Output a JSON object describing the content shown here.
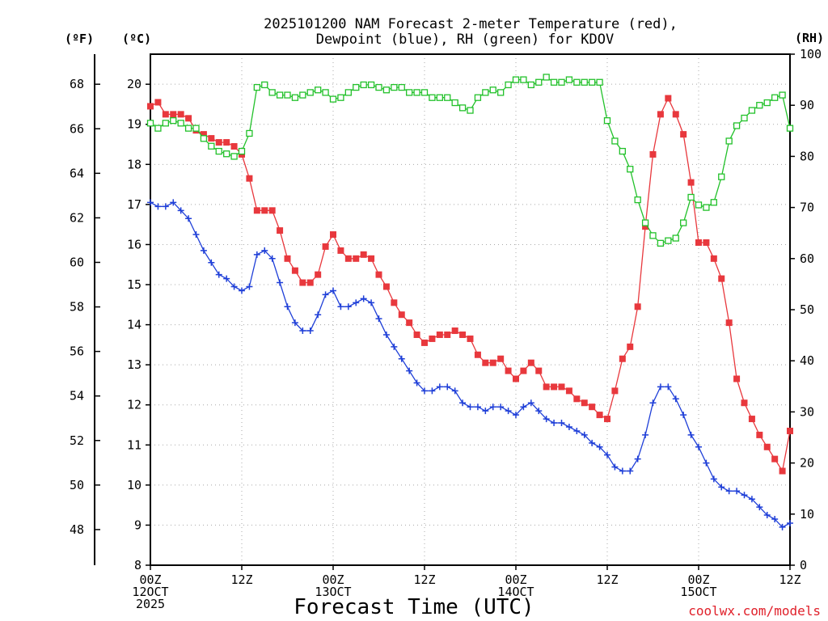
{
  "chart_data": {
    "type": "line",
    "title_lines": [
      "2025101200 NAM Forecast 2-meter Temperature (red),",
      "Dewpoint (blue), RH (green) for KDOV"
    ],
    "xlabel": "Forecast Time (UTC)",
    "credit": "coolwx.com/models",
    "unit_labels": {
      "fahrenheit": "(ºF)",
      "celsius": "(ºC)",
      "rh": "(RH)"
    },
    "x_range_hours": [
      0,
      84
    ],
    "x_ticks": [
      {
        "hour": 0,
        "lines": [
          "00Z",
          "12OCT",
          "2025"
        ]
      },
      {
        "hour": 12,
        "lines": [
          "12Z"
        ]
      },
      {
        "hour": 24,
        "lines": [
          "00Z",
          "13OCT"
        ]
      },
      {
        "hour": 36,
        "lines": [
          "12Z"
        ]
      },
      {
        "hour": 48,
        "lines": [
          "00Z",
          "14OCT"
        ]
      },
      {
        "hour": 60,
        "lines": [
          "12Z"
        ]
      },
      {
        "hour": 72,
        "lines": [
          "00Z",
          "15OCT"
        ]
      },
      {
        "hour": 84,
        "lines": [
          "12Z"
        ]
      }
    ],
    "ylim_celsius": [
      8,
      20.75
    ],
    "y_ticks_celsius": [
      "8",
      "9",
      "10",
      "11",
      "12",
      "13",
      "14",
      "15",
      "16",
      "17",
      "18",
      "19",
      "20"
    ],
    "y_ticks_fahrenheit": [
      "48",
      "50",
      "52",
      "54",
      "56",
      "58",
      "60",
      "62",
      "64",
      "66",
      "68"
    ],
    "ylim_rh": [
      0,
      100
    ],
    "y_ticks_rh": [
      "0",
      "10",
      "20",
      "30",
      "40",
      "50",
      "60",
      "70",
      "80",
      "90",
      "100"
    ],
    "grid": true,
    "series": [
      {
        "name": "Temperature",
        "units": "C",
        "color": "#e8383d",
        "marker": "filled-square",
        "x": [
          0,
          1,
          2,
          3,
          4,
          5,
          6,
          7,
          8,
          9,
          10,
          11,
          12,
          13,
          14,
          15,
          16,
          17,
          18,
          19,
          20,
          21,
          22,
          23,
          24,
          25,
          26,
          27,
          28,
          29,
          30,
          31,
          32,
          33,
          34,
          35,
          36,
          37,
          38,
          39,
          40,
          41,
          42,
          43,
          44,
          45,
          46,
          47,
          48,
          49,
          50,
          51,
          52,
          53,
          54,
          55,
          56,
          57,
          58,
          59,
          60,
          61,
          62,
          63,
          64,
          65,
          66,
          67,
          68,
          69,
          70,
          71,
          72,
          73,
          74,
          75,
          76,
          77,
          78,
          79,
          80,
          81,
          82,
          83,
          84
        ],
        "values": [
          19.45,
          19.55,
          19.25,
          19.25,
          19.25,
          19.15,
          18.85,
          18.75,
          18.65,
          18.55,
          18.55,
          18.45,
          18.25,
          17.65,
          16.85,
          16.85,
          16.85,
          16.35,
          15.65,
          15.35,
          15.05,
          15.05,
          15.25,
          15.95,
          16.25,
          15.85,
          15.65,
          15.65,
          15.75,
          15.65,
          15.25,
          14.95,
          14.55,
          14.25,
          14.05,
          13.75,
          13.55,
          13.65,
          13.75,
          13.75,
          13.85,
          13.75,
          13.65,
          13.25,
          13.05,
          13.05,
          13.15,
          12.85,
          12.65,
          12.85,
          13.05,
          12.85,
          12.45,
          12.45,
          12.45,
          12.35,
          12.15,
          12.05,
          11.95,
          11.75,
          11.65,
          12.35,
          13.15,
          13.45,
          14.45,
          16.45,
          18.25,
          19.25,
          19.65,
          19.25,
          18.75,
          17.55,
          16.05,
          16.05,
          15.65,
          15.15,
          14.05,
          12.65,
          12.05,
          11.65,
          11.25,
          10.95,
          10.65,
          10.35,
          11.35
        ]
      },
      {
        "name": "Dewpoint",
        "units": "C",
        "color": "#1f3fd8",
        "marker": "plus",
        "x": [
          0,
          1,
          2,
          3,
          4,
          5,
          6,
          7,
          8,
          9,
          10,
          11,
          12,
          13,
          14,
          15,
          16,
          17,
          18,
          19,
          20,
          21,
          22,
          23,
          24,
          25,
          26,
          27,
          28,
          29,
          30,
          31,
          32,
          33,
          34,
          35,
          36,
          37,
          38,
          39,
          40,
          41,
          42,
          43,
          44,
          45,
          46,
          47,
          48,
          49,
          50,
          51,
          52,
          53,
          54,
          55,
          56,
          57,
          58,
          59,
          60,
          61,
          62,
          63,
          64,
          65,
          66,
          67,
          68,
          69,
          70,
          71,
          72,
          73,
          74,
          75,
          76,
          77,
          78,
          79,
          80,
          81,
          82,
          83,
          84
        ],
        "values": [
          17.05,
          16.95,
          16.95,
          17.05,
          16.85,
          16.65,
          16.25,
          15.85,
          15.55,
          15.25,
          15.15,
          14.95,
          14.85,
          14.95,
          15.75,
          15.85,
          15.65,
          15.05,
          14.45,
          14.05,
          13.85,
          13.85,
          14.25,
          14.75,
          14.85,
          14.45,
          14.45,
          14.55,
          14.65,
          14.55,
          14.15,
          13.75,
          13.45,
          13.15,
          12.85,
          12.55,
          12.35,
          12.35,
          12.45,
          12.45,
          12.35,
          12.05,
          11.95,
          11.95,
          11.85,
          11.95,
          11.95,
          11.85,
          11.75,
          11.95,
          12.05,
          11.85,
          11.65,
          11.55,
          11.55,
          11.45,
          11.35,
          11.25,
          11.05,
          10.95,
          10.75,
          10.45,
          10.35,
          10.35,
          10.65,
          11.25,
          12.05,
          12.45,
          12.45,
          12.15,
          11.75,
          11.25,
          10.95,
          10.55,
          10.15,
          9.95,
          9.85,
          9.85,
          9.75,
          9.65,
          9.45,
          9.25,
          9.15,
          8.95,
          9.05
        ]
      },
      {
        "name": "RH",
        "units": "%",
        "color": "#22c12a",
        "marker": "hollow-square",
        "x": [
          0,
          1,
          2,
          3,
          4,
          5,
          6,
          7,
          8,
          9,
          10,
          11,
          12,
          13,
          14,
          15,
          16,
          17,
          18,
          19,
          20,
          21,
          22,
          23,
          24,
          25,
          26,
          27,
          28,
          29,
          30,
          31,
          32,
          33,
          34,
          35,
          36,
          37,
          38,
          39,
          40,
          41,
          42,
          43,
          44,
          45,
          46,
          47,
          48,
          49,
          50,
          51,
          52,
          53,
          54,
          55,
          56,
          57,
          58,
          59,
          60,
          61,
          62,
          63,
          64,
          65,
          66,
          67,
          68,
          69,
          70,
          71,
          72,
          73,
          74,
          75,
          76,
          77,
          78,
          79,
          80,
          81,
          82,
          83,
          84
        ],
        "values": [
          86.5,
          85.5,
          86.5,
          87,
          86.5,
          85.5,
          85.5,
          83.5,
          82,
          81,
          80.5,
          80,
          81,
          84.5,
          93.5,
          94,
          92.5,
          92,
          92,
          91.5,
          92,
          92.5,
          93,
          92.5,
          91.2,
          91.5,
          92.5,
          93.5,
          94,
          94,
          93.5,
          93,
          93.5,
          93.5,
          92.5,
          92.5,
          92.5,
          91.5,
          91.5,
          91.5,
          90.5,
          89.5,
          89,
          91.5,
          92.5,
          93,
          92.5,
          94,
          95,
          95,
          94,
          94.5,
          95.5,
          94.5,
          94.5,
          95,
          94.5,
          94.5,
          94.5,
          94.5,
          87,
          83,
          81,
          77.5,
          71.5,
          67,
          64.5,
          63,
          63.5,
          64,
          67,
          72,
          70.5,
          70,
          71,
          76,
          83,
          86,
          87.5,
          89,
          90,
          90.5,
          91.5,
          92,
          85.5
        ]
      }
    ]
  }
}
